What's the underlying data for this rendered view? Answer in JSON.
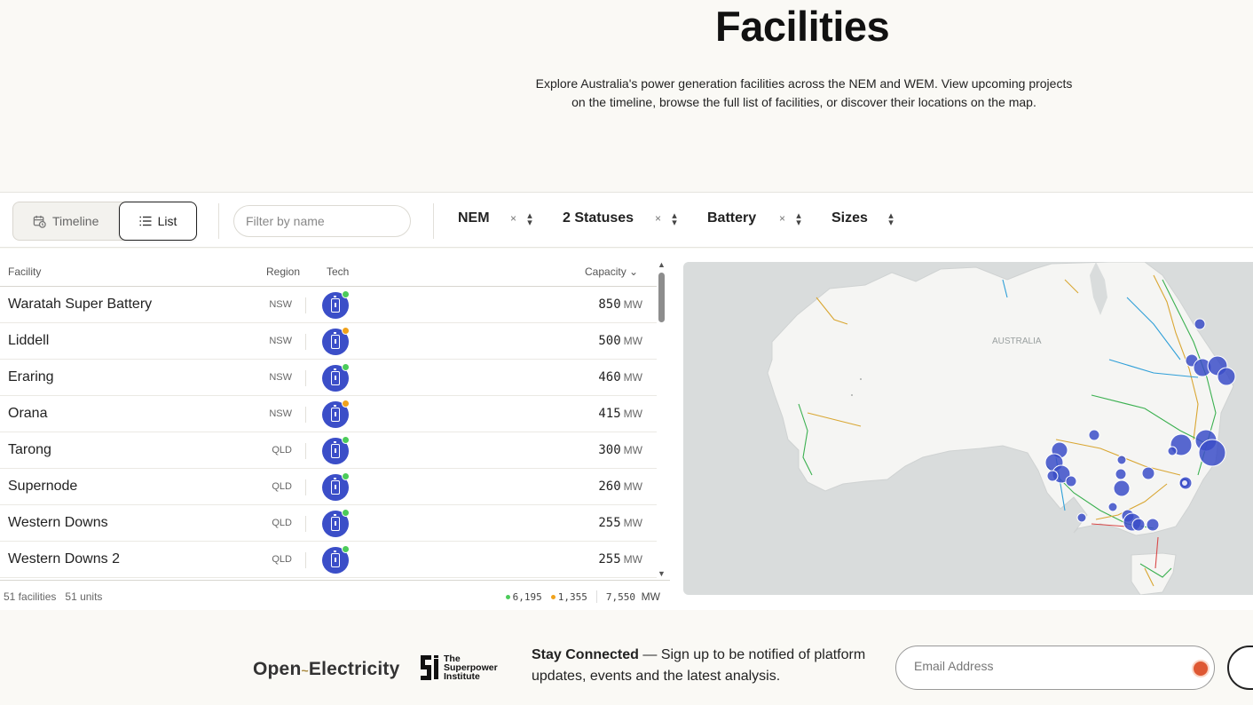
{
  "hero": {
    "title": "Facilities",
    "description": "Explore Australia's power generation facilities across the NEM and WEM. View upcoming projects on the timeline, browse the full list of facilities, or discover their locations on the map."
  },
  "toolbar": {
    "view_toggle": {
      "timeline_label": "Timeline",
      "list_label": "List",
      "active": "List"
    },
    "filter_placeholder": "Filter by name",
    "filters": [
      {
        "label": "NEM"
      },
      {
        "label": "2 Statuses"
      },
      {
        "label": "Battery"
      },
      {
        "label": "Sizes"
      }
    ],
    "clear_glyph": "×"
  },
  "table": {
    "columns": {
      "facility": "Facility",
      "region": "Region",
      "tech": "Tech",
      "capacity": "Capacity ⌄"
    },
    "unit": "MW",
    "rows": [
      {
        "name": "Waratah Super Battery",
        "region": "NSW",
        "capacity": "850",
        "status_color": "#4ccb5a"
      },
      {
        "name": "Liddell",
        "region": "NSW",
        "capacity": "500",
        "status_color": "#f0a21c"
      },
      {
        "name": "Eraring",
        "region": "NSW",
        "capacity": "460",
        "status_color": "#4ccb5a"
      },
      {
        "name": "Orana",
        "region": "NSW",
        "capacity": "415",
        "status_color": "#f0a21c"
      },
      {
        "name": "Tarong",
        "region": "QLD",
        "capacity": "300",
        "status_color": "#4ccb5a"
      },
      {
        "name": "Supernode",
        "region": "QLD",
        "capacity": "260",
        "status_color": "#4ccb5a"
      },
      {
        "name": "Western Downs",
        "region": "QLD",
        "capacity": "255",
        "status_color": "#4ccb5a"
      },
      {
        "name": "Western Downs 2",
        "region": "QLD",
        "capacity": "255",
        "status_color": "#4ccb5a"
      }
    ],
    "footer": {
      "facilities": "51 facilities",
      "units": "51 units",
      "operating": "6,195",
      "committed": "1,355",
      "total": "7,550",
      "total_unit": "MW",
      "operating_color": "#4ccb5a",
      "committed_color": "#f0a21c"
    }
  },
  "map": {
    "label": "AUSTRALIA",
    "marker_color": "#3b4ec8"
  },
  "footer": {
    "logo_open": "Open",
    "logo_tilde": "~",
    "logo_electricity": "Electricity",
    "spi_line1": "The",
    "spi_line2": "Superpower",
    "spi_line3": "Institute",
    "stay_bold": "Stay Connected",
    "stay_text": " — Sign up to be notified of platform updates, events and the latest analysis.",
    "email_placeholder": "Email Address"
  }
}
